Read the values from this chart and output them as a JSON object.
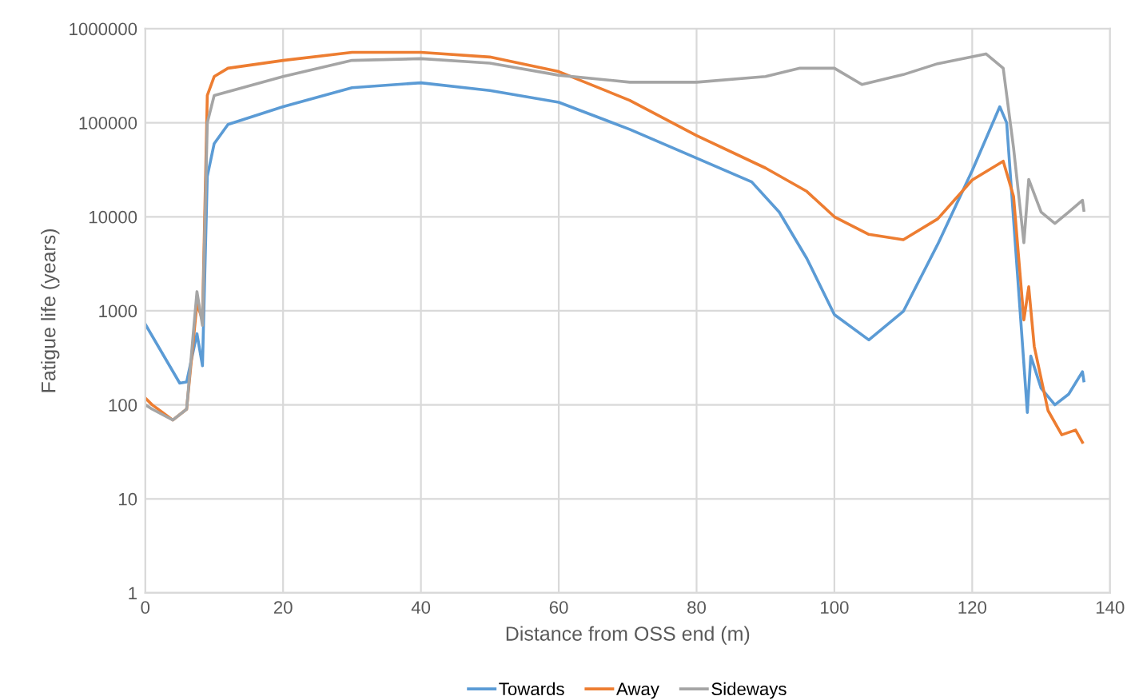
{
  "chart_data": {
    "type": "line",
    "xlabel": "Distance from OSS end (m)",
    "ylabel": "Fatigue life (years)",
    "log": "y",
    "grid": true,
    "legend": "bottom",
    "marker": "none",
    "line_style": "solid",
    "xlim": [
      0,
      140
    ],
    "xticks": [
      0,
      20,
      40,
      60,
      80,
      100,
      120,
      140
    ],
    "ylim": [
      1,
      1000000
    ],
    "yticks": [
      1,
      10,
      100,
      1000,
      10000,
      100000,
      1000000
    ],
    "series": [
      {
        "name": "Towards",
        "color": "#5b9bd5",
        "x": [
          0,
          5,
          6,
          7.5,
          8.3,
          9,
          10,
          12,
          20,
          30,
          40,
          50,
          60,
          70.3,
          80,
          88,
          92,
          96,
          100,
          105,
          110,
          115,
          120,
          124,
          125,
          128,
          128.5,
          130,
          132,
          134,
          136,
          136.2
        ],
        "values": [
          720,
          170,
          175,
          570,
          260,
          27000,
          60000,
          96000,
          148000,
          236000,
          266000,
          220000,
          165000,
          85000,
          42000,
          23500,
          11200,
          3600,
          910,
          490,
          985,
          5100,
          31000,
          148000,
          100000,
          83,
          330,
          150,
          100,
          130,
          225,
          180
        ]
      },
      {
        "name": "Away",
        "color": "#ed7d31",
        "x": [
          0,
          1,
          4,
          6,
          7.5,
          8.3,
          9,
          10,
          12,
          20,
          30,
          40,
          50,
          60,
          70.3,
          80,
          90,
          96,
          100,
          105,
          110,
          115,
          120,
          124.5,
          126,
          127.5,
          128.2,
          129,
          131,
          133,
          135,
          136
        ],
        "values": [
          118,
          100,
          69,
          90,
          1200,
          800,
          195000,
          310000,
          380000,
          460000,
          560000,
          560000,
          500000,
          350000,
          173000,
          73000,
          33000,
          18600,
          10000,
          6500,
          5700,
          9500,
          24600,
          39000,
          16500,
          800,
          1800,
          420,
          87,
          48,
          54,
          40
        ]
      },
      {
        "name": "Sideways",
        "color": "#a5a5a5",
        "x": [
          0,
          1,
          4,
          6,
          7.5,
          8.3,
          9,
          10,
          20,
          30,
          40,
          50,
          60,
          70.3,
          80,
          90,
          95,
          100,
          104,
          110,
          115,
          122,
          124.5,
          126,
          127.5,
          128.2,
          130,
          132,
          134,
          136,
          136.2
        ],
        "values": [
          100,
          90,
          69,
          90,
          1600,
          700,
          100000,
          195000,
          310000,
          460000,
          480000,
          430000,
          320000,
          270000,
          270000,
          310000,
          380000,
          380000,
          255000,
          325000,
          425000,
          540000,
          380000,
          54000,
          5300,
          25000,
          11200,
          8500,
          11200,
          15000,
          11700
        ]
      }
    ]
  }
}
